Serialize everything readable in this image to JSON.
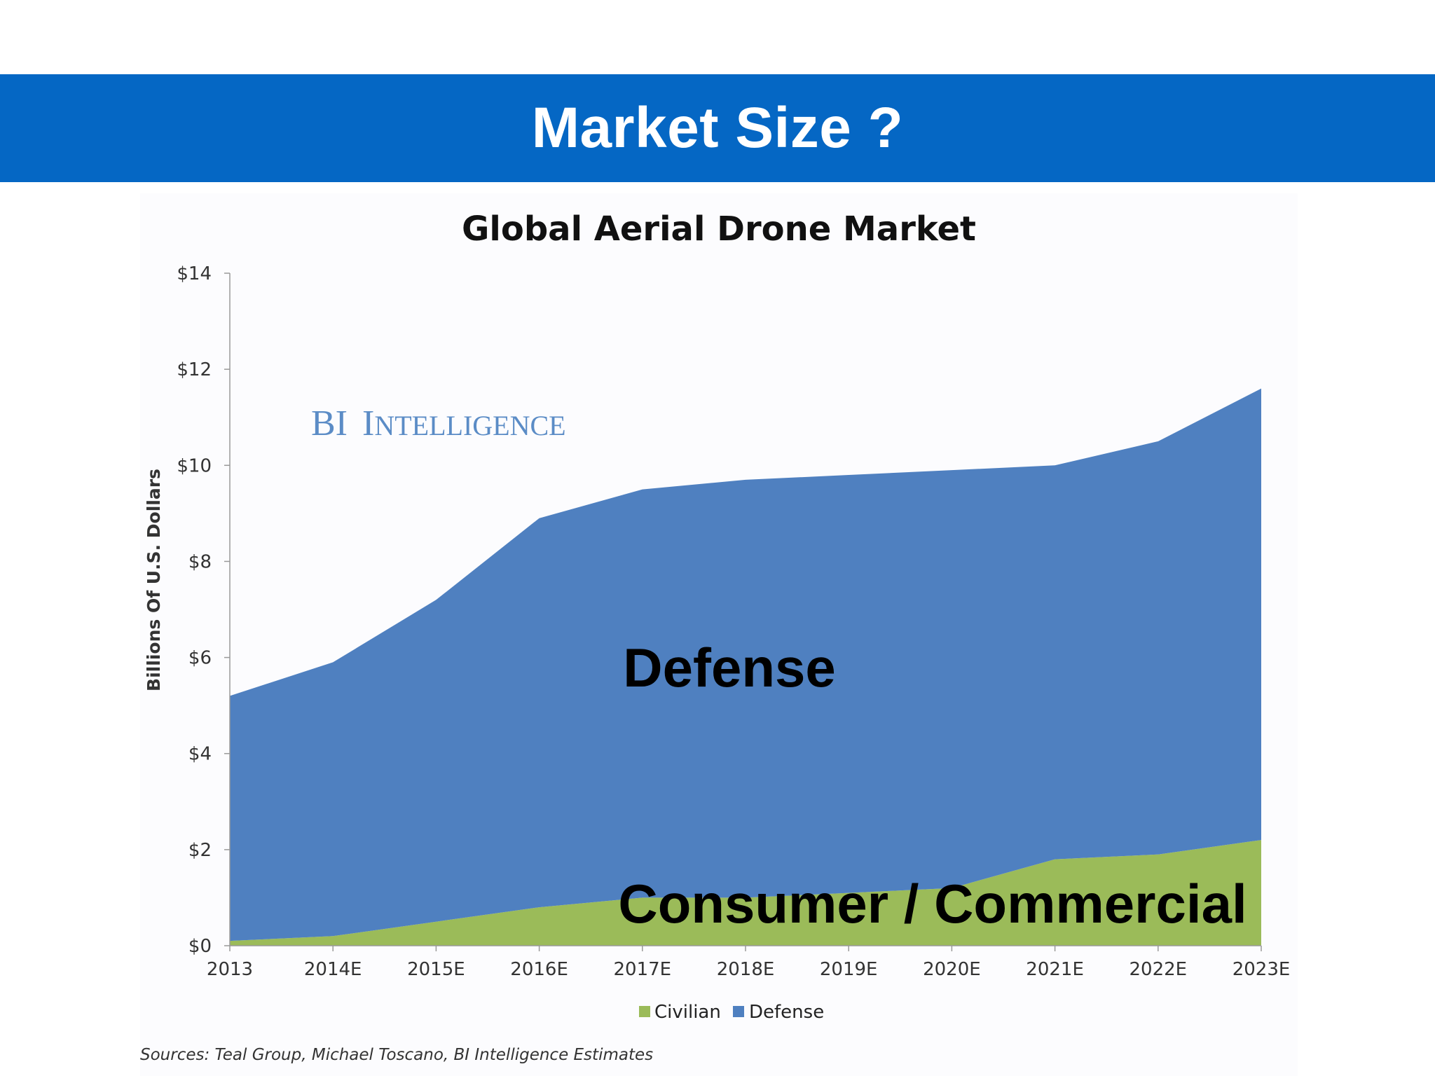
{
  "slide": {
    "title": "Market Size ?"
  },
  "colors": {
    "banner": "#0567c4",
    "defense": "#4f80c0",
    "civilian": "#9bbb59",
    "watermark": "#5b8cc6"
  },
  "chart_data": {
    "type": "area",
    "stacked": true,
    "title": "Global Aerial Drone Market",
    "ylabel": "Billions Of U.S. Dollars",
    "xlabel": "",
    "categories": [
      "2013",
      "2014E",
      "2015E",
      "2016E",
      "2017E",
      "2018E",
      "2019E",
      "2020E",
      "2021E",
      "2022E",
      "2023E"
    ],
    "ylim": [
      0,
      14
    ],
    "yticks": [
      "$0",
      "$2",
      "$4",
      "$6",
      "$8",
      "$10",
      "$12",
      "$14"
    ],
    "ytick_values": [
      0,
      2,
      4,
      6,
      8,
      10,
      12,
      14
    ],
    "series": [
      {
        "name": "Civilian",
        "color": "#9bbb59",
        "values": [
          0.1,
          0.2,
          0.5,
          0.8,
          1.0,
          1.0,
          1.1,
          1.2,
          1.8,
          1.9,
          2.2
        ]
      },
      {
        "name": "Defense",
        "color": "#4f80c0",
        "values": [
          5.1,
          5.7,
          6.7,
          8.1,
          8.5,
          8.7,
          8.7,
          8.7,
          8.2,
          8.6,
          9.4
        ]
      }
    ],
    "grid": false,
    "legend_position": "bottom",
    "watermark": "BI Intelligence",
    "annotations": [
      "Defense",
      "Consumer / Commercial"
    ],
    "source": "Sources: Teal Group, Michael Toscano, BI Intelligence Estimates"
  }
}
